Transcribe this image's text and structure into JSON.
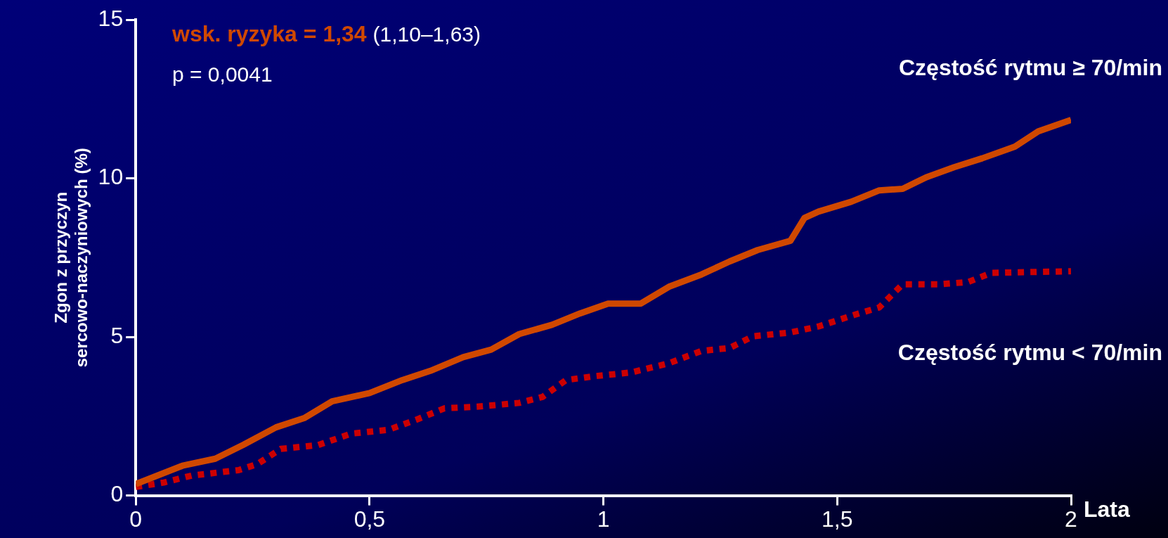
{
  "chart_data": {
    "type": "line",
    "xlabel": "Lata",
    "ylabel": "Zgon z przyczyn\nsercowo-naczyniowych (%)",
    "xlim": [
      0,
      2
    ],
    "xticks": [
      0,
      {
        "value": 0.5,
        "label": "0,5"
      },
      1,
      {
        "value": 1.5,
        "label": "1,5"
      },
      2
    ],
    "ylim": [
      0,
      15
    ],
    "yticks": [
      0,
      5,
      10,
      15
    ],
    "grid": false,
    "legend": false,
    "marker": "none",
    "annotations": [
      "wsk. ryzyka = 1,34",
      "(1,10–1,63)",
      "p = 0,0041"
    ],
    "series": [
      {
        "name": "Częstość rytmu ≥ 70/min",
        "color": "#d04800",
        "line_style": "solid",
        "x": [
          0,
          0.1,
          0.17,
          0.23,
          0.3,
          0.36,
          0.42,
          0.5,
          0.57,
          0.63,
          0.7,
          0.76,
          0.82,
          0.89,
          0.95,
          1.01,
          1.08,
          1.14,
          1.21,
          1.27,
          1.33,
          1.4,
          1.43,
          1.46,
          1.53,
          1.59,
          1.64,
          1.69,
          1.75,
          1.81,
          1.88,
          1.93,
          2
        ],
        "values": [
          0.36,
          0.94,
          1.16,
          1.6,
          2.15,
          2.44,
          2.97,
          3.23,
          3.64,
          3.93,
          4.36,
          4.6,
          5.09,
          5.38,
          5.74,
          6.05,
          6.05,
          6.58,
          6.97,
          7.38,
          7.74,
          8.03,
          8.75,
          8.95,
          9.26,
          9.62,
          9.67,
          10.03,
          10.35,
          10.63,
          11,
          11.48,
          11.84
        ]
      },
      {
        "name": "Częstość rytmu < 70/min",
        "color": "#cc0000",
        "line_style": "dotted",
        "x": [
          0,
          0.06,
          0.12,
          0.22,
          0.26,
          0.31,
          0.39,
          0.46,
          0.54,
          0.6,
          0.66,
          0.73,
          0.82,
          0.87,
          0.92,
          0.98,
          1.06,
          1.14,
          1.21,
          1.27,
          1.32,
          1.4,
          1.46,
          1.54,
          1.59,
          1.64,
          1.72,
          1.78,
          1.83,
          2
        ],
        "values": [
          0.27,
          0.41,
          0.63,
          0.8,
          0.99,
          1.47,
          1.59,
          1.95,
          2.07,
          2.39,
          2.75,
          2.8,
          2.92,
          3.11,
          3.64,
          3.76,
          3.88,
          4.17,
          4.56,
          4.65,
          5.02,
          5.14,
          5.33,
          5.71,
          5.93,
          6.66,
          6.66,
          6.73,
          7.02,
          7.07
        ]
      }
    ]
  }
}
